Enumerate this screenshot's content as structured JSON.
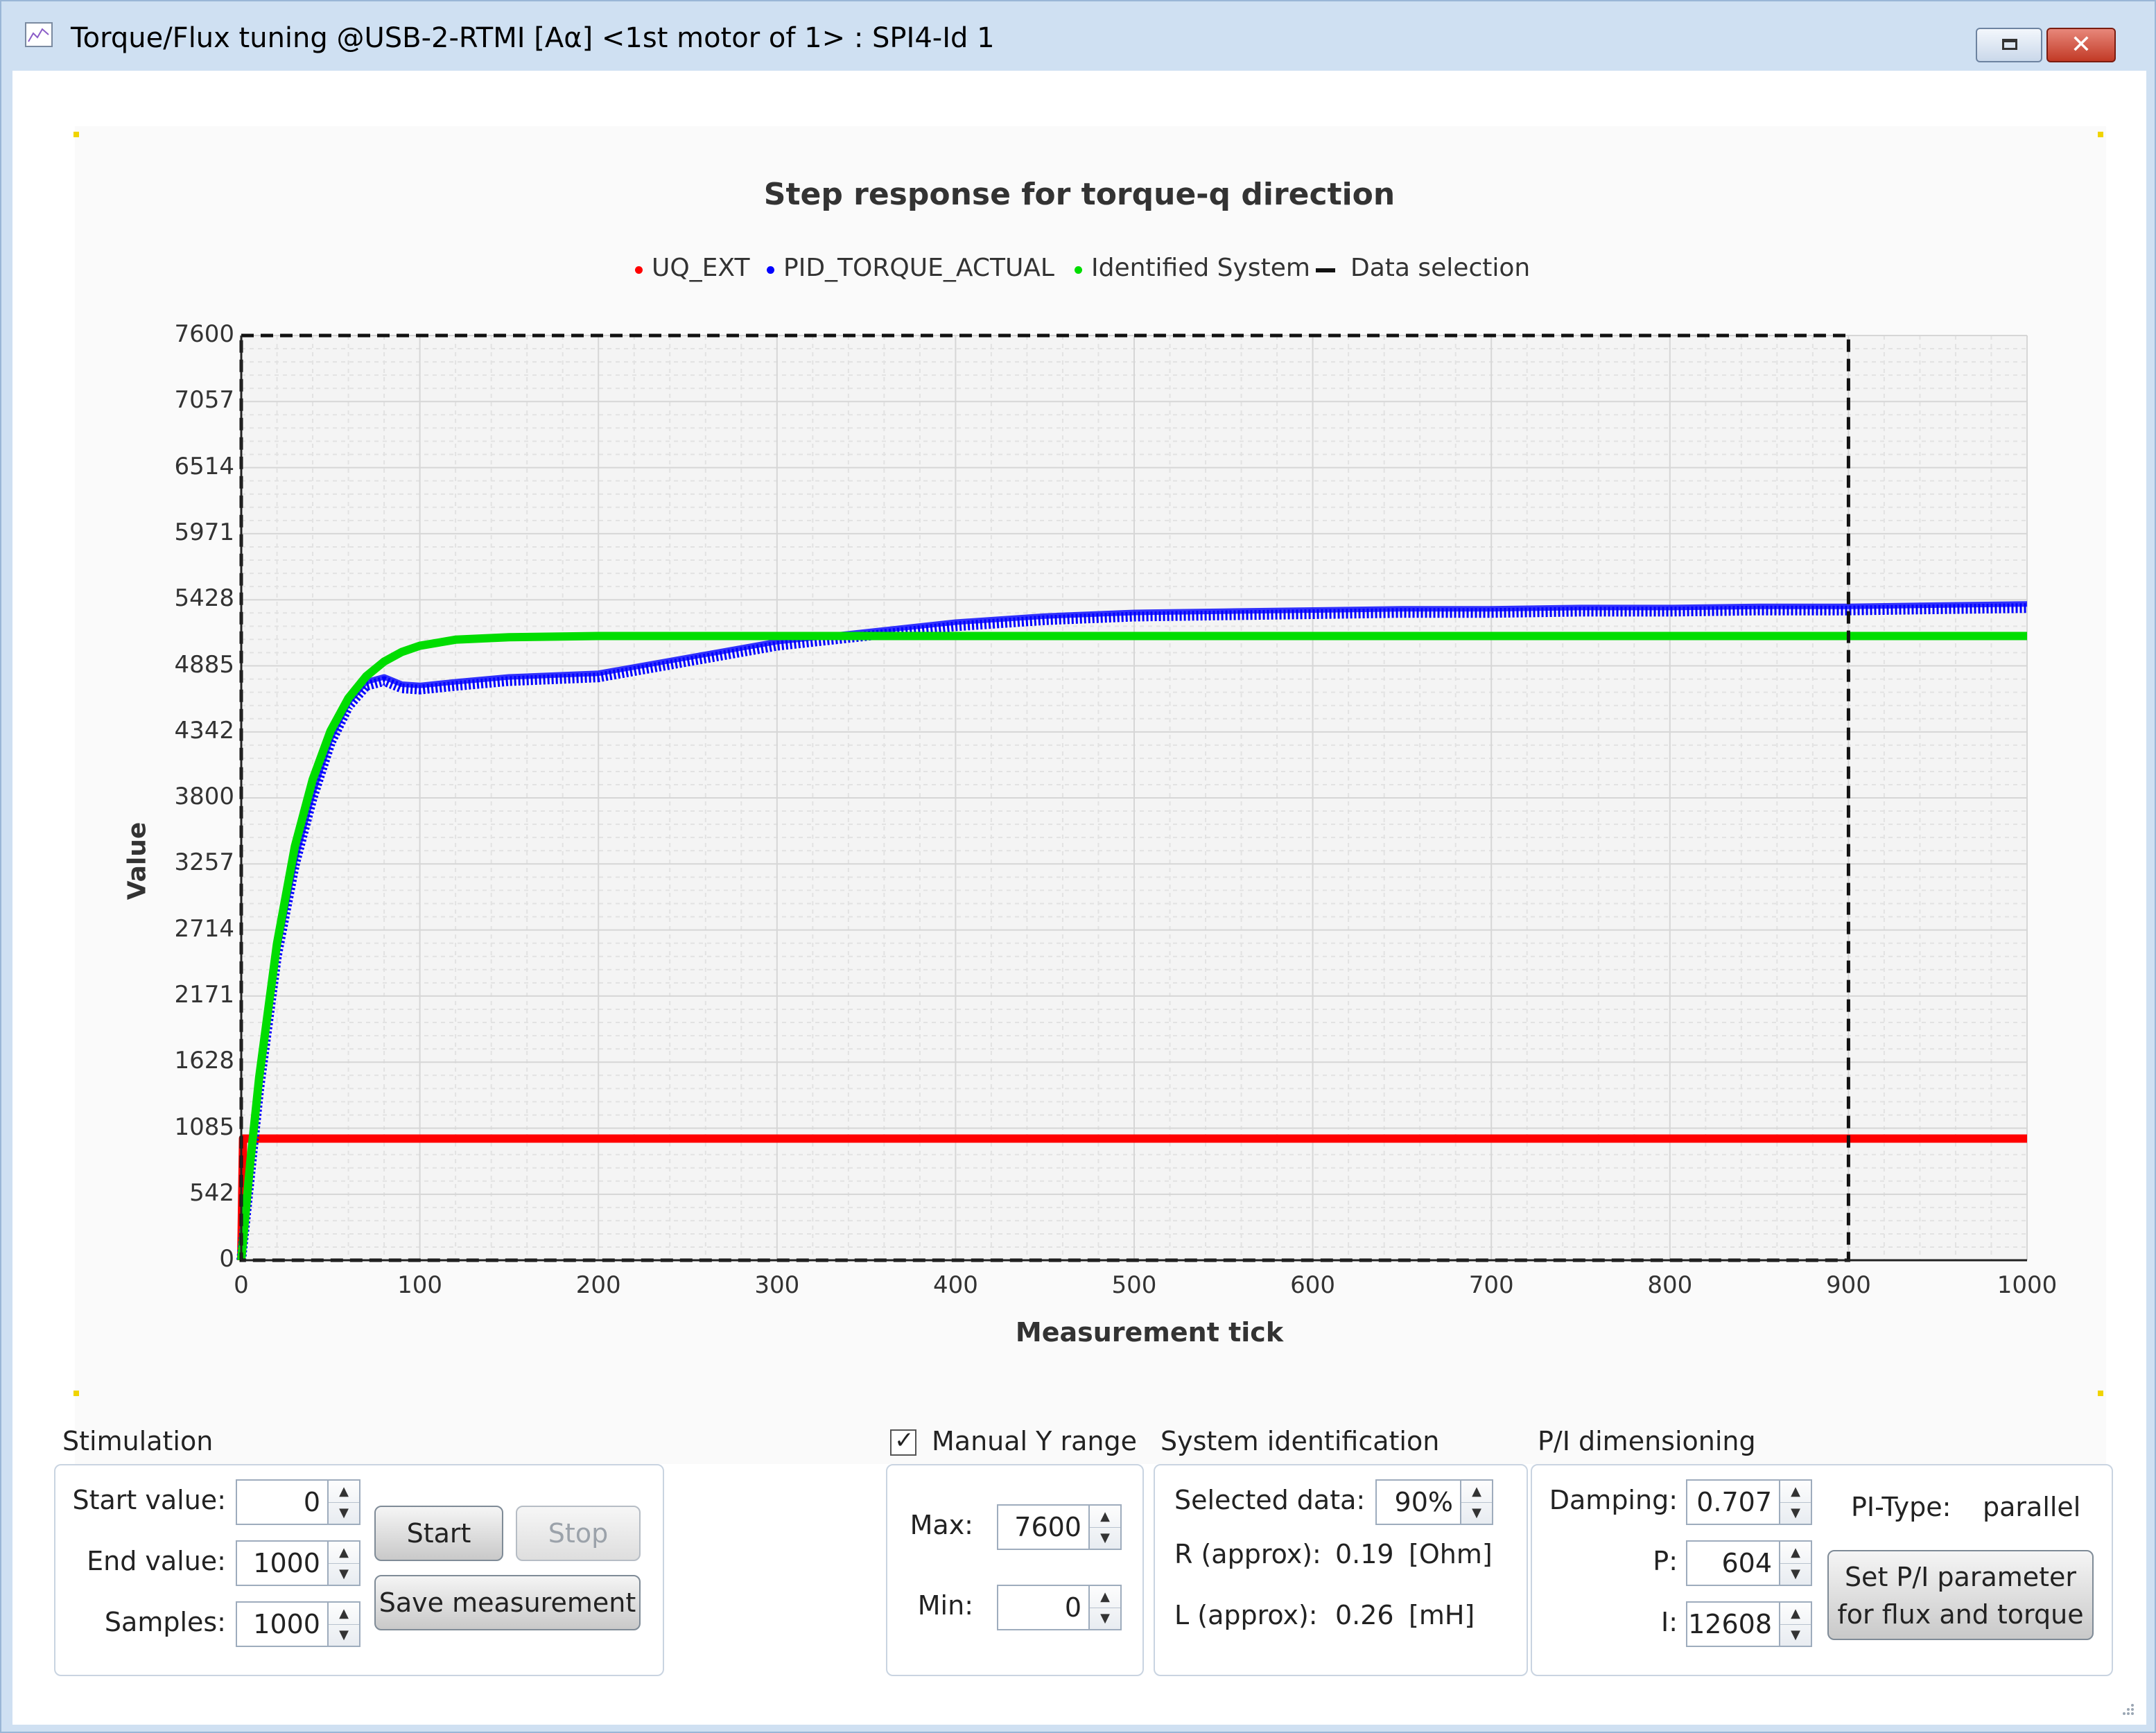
{
  "window": {
    "title": "Torque/Flux tuning @USB-2-RTMI [Aα] <1st motor of 1> : SPI4-Id 1",
    "restore_icon": "restore-icon",
    "close_icon": "close-icon",
    "close_glyph": "✕"
  },
  "chart_data": {
    "type": "scatter",
    "title": "Step response for torque-q direction",
    "xlabel": "Measurement tick",
    "ylabel": "Value",
    "xlim": [
      0,
      1000
    ],
    "ylim": [
      0,
      7600
    ],
    "x_ticks": [
      "0",
      "100",
      "200",
      "300",
      "400",
      "500",
      "600",
      "700",
      "800",
      "900",
      "1000"
    ],
    "y_ticks": [
      "0",
      "542",
      "1085",
      "1628",
      "2171",
      "2714",
      "3257",
      "3800",
      "4342",
      "4885",
      "5428",
      "5971",
      "6514",
      "7057",
      "7600"
    ],
    "grid": true,
    "legend_position": "top-center",
    "data_selection_x": [
      0,
      900
    ],
    "series": [
      {
        "name": "UQ_EXT",
        "color": "#ff0000",
        "x": [
          0,
          1,
          2,
          3,
          1000
        ],
        "y": [
          0,
          1000,
          1000,
          1000,
          1000
        ]
      },
      {
        "name": "PID_TORQUE_ACTUAL",
        "color": "#0000ff",
        "x": [
          0,
          5,
          10,
          20,
          30,
          40,
          50,
          60,
          70,
          80,
          90,
          100,
          120,
          150,
          200,
          250,
          300,
          350,
          400,
          450,
          500,
          550,
          600,
          650,
          700,
          750,
          800,
          850,
          900,
          950,
          1000
        ],
        "y": [
          0,
          700,
          1400,
          2500,
          3250,
          3800,
          4250,
          4550,
          4720,
          4760,
          4700,
          4690,
          4720,
          4760,
          4790,
          4920,
          5050,
          5130,
          5210,
          5260,
          5290,
          5300,
          5310,
          5320,
          5320,
          5330,
          5330,
          5340,
          5340,
          5350,
          5360
        ]
      },
      {
        "name": "Identified System",
        "color": "#00dd00",
        "x": [
          0,
          5,
          10,
          20,
          30,
          40,
          50,
          60,
          70,
          80,
          90,
          100,
          120,
          150,
          200,
          250,
          300,
          400,
          500,
          600,
          700,
          800,
          900,
          1000
        ],
        "y": [
          0,
          800,
          1500,
          2600,
          3400,
          3950,
          4350,
          4620,
          4800,
          4920,
          5000,
          5050,
          5100,
          5120,
          5130,
          5130,
          5130,
          5130,
          5130,
          5130,
          5130,
          5130,
          5130,
          5130
        ]
      },
      {
        "name": "Data selection",
        "color": "#111111"
      }
    ]
  },
  "stimulation": {
    "title": "Stimulation",
    "start_label": "Start value:",
    "start_value": "0",
    "end_label": "End value:",
    "end_value": "1000",
    "samples_label": "Samples:",
    "samples_value": "1000",
    "start_button": "Start",
    "stop_button": "Stop",
    "save_button": "Save measurement"
  },
  "yrange": {
    "checkbox_label": "Manual Y  range",
    "checked": true,
    "max_label": "Max:",
    "max_value": "7600",
    "min_label": "Min:",
    "min_value": "0"
  },
  "sysid": {
    "title": "System identification",
    "selected_label": "Selected data:",
    "selected_value": "90%",
    "r_label": "R (approx):",
    "r_value": "0.19",
    "r_unit": "[Ohm]",
    "l_label": "L (approx):",
    "l_value": "0.26",
    "l_unit": "[mH]"
  },
  "pi": {
    "title": "P/I dimensioning",
    "damping_label": "Damping:",
    "damping_value": "0.707",
    "p_label": "P:",
    "p_value": "604",
    "i_label": "I:",
    "i_value": "12608",
    "type_label": "PI-Type:",
    "type_value": "parallel",
    "set_button_line1": "Set P/I parameter",
    "set_button_line2": "for flux and torque"
  }
}
